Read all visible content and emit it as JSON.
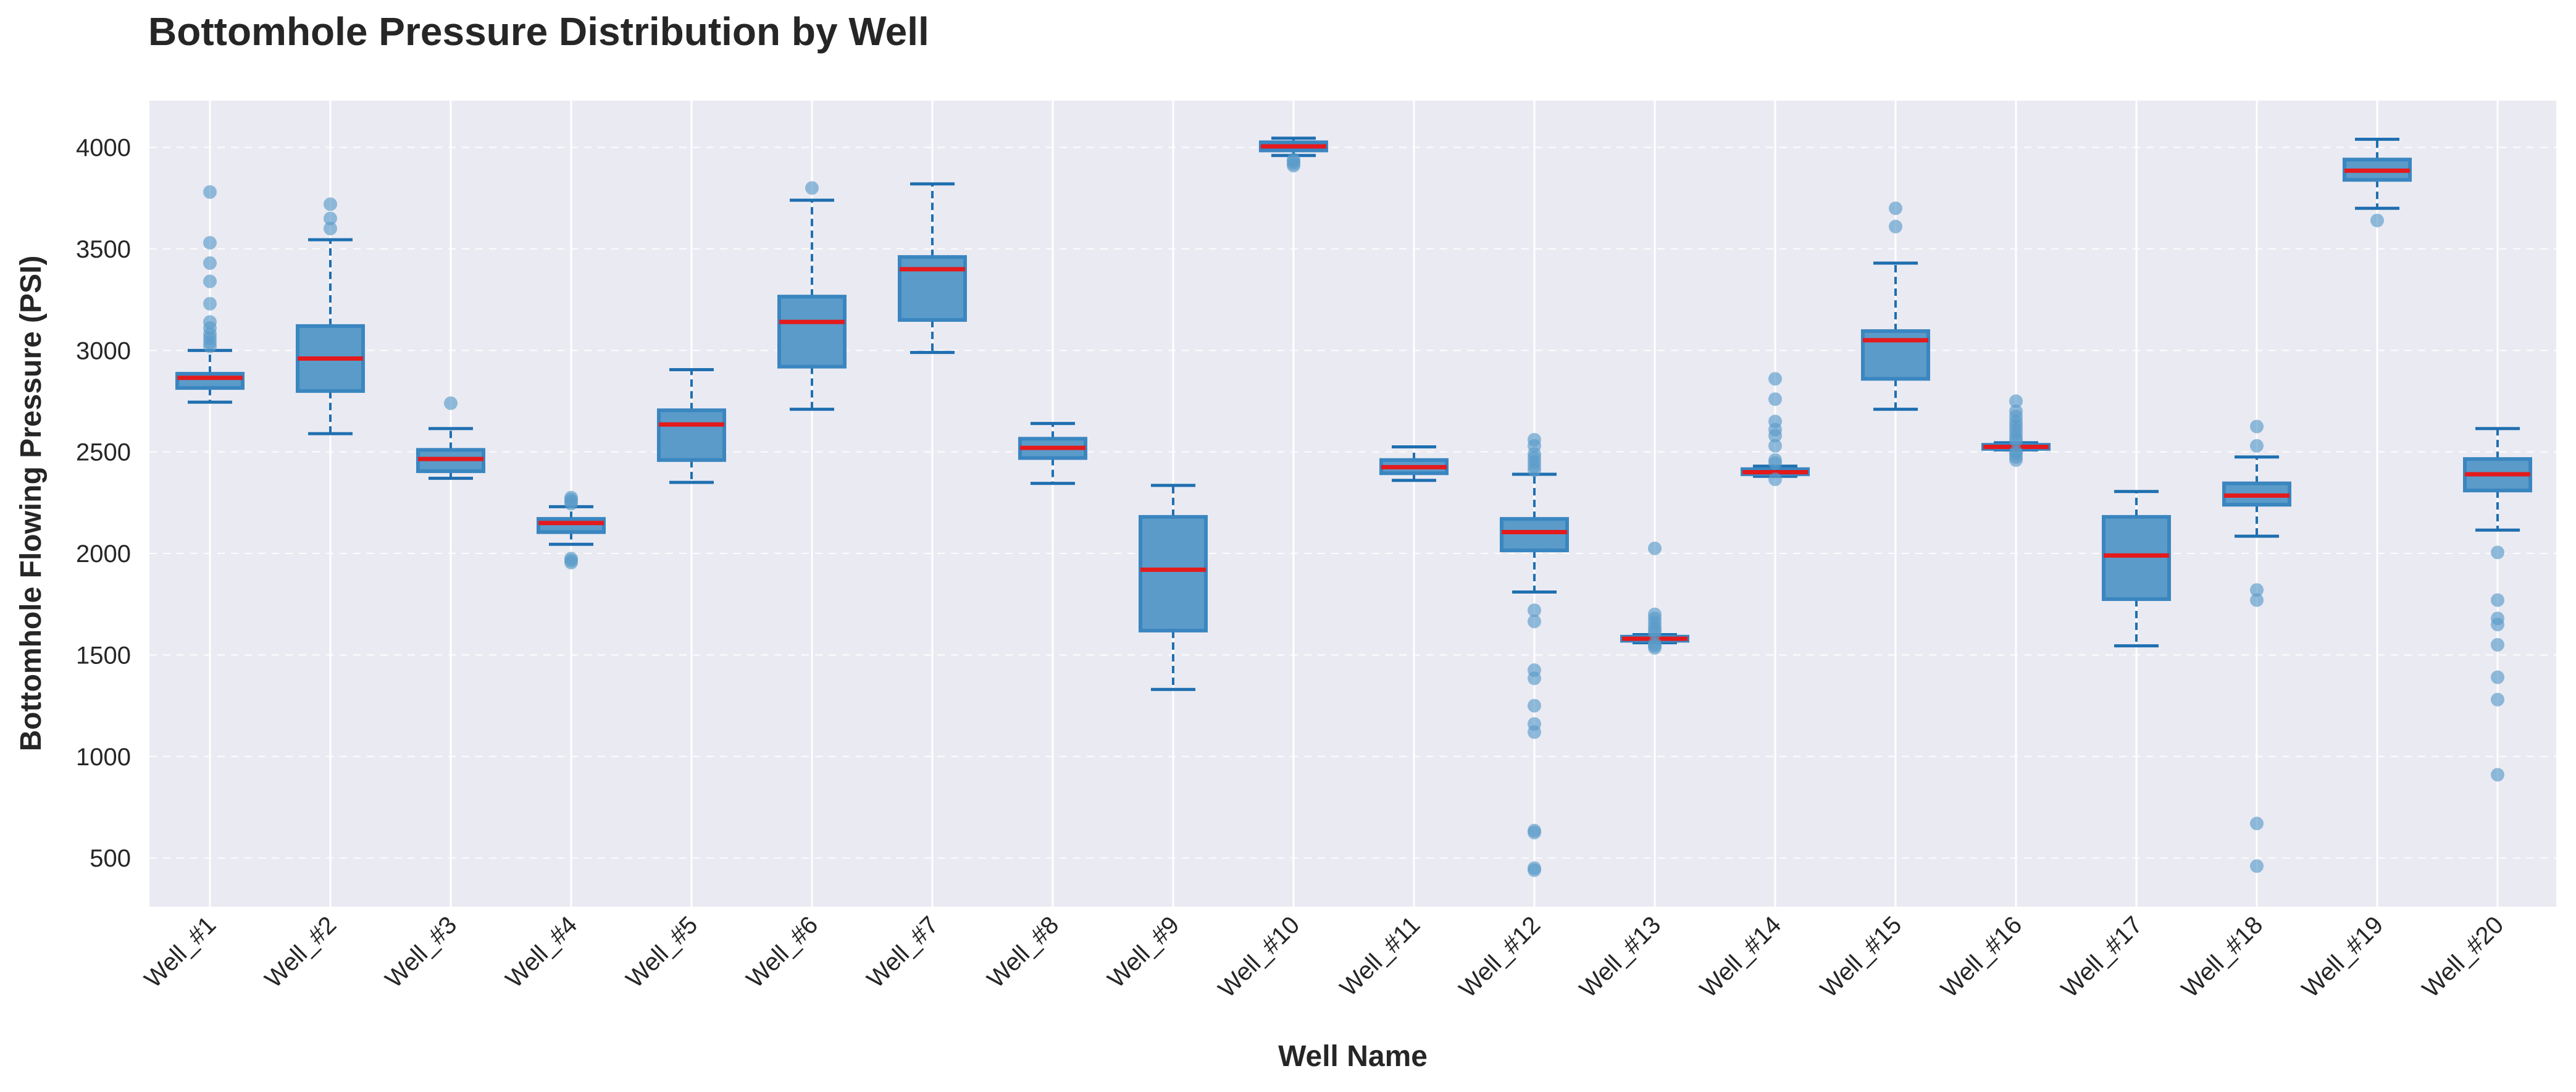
{
  "chart_data": {
    "type": "box",
    "title": "Bottomhole Pressure Distribution by Well",
    "xlabel": "Well Name",
    "ylabel": "Bottomhole Flowing Pressure (PSI)",
    "ylim": [
      260,
      4230
    ],
    "yticks": [
      500,
      1000,
      1500,
      2000,
      2500,
      3000,
      3500,
      4000
    ],
    "grid": true,
    "colors": {
      "plot_background": "#eaeaf2",
      "box_fill": "#5b9bc9",
      "box_edge": "#3a86c0",
      "whisker": "#1f6fb0",
      "median": "#e41a1c",
      "outlier": "#5b9bc9",
      "grid": "#ffffff"
    },
    "categories": [
      "Well_#1",
      "Well_#2",
      "Well_#3",
      "Well_#4",
      "Well_#5",
      "Well_#6",
      "Well_#7",
      "Well_#8",
      "Well_#9",
      "Well_#10",
      "Well_#11",
      "Well_#12",
      "Well_#13",
      "Well_#14",
      "Well_#15",
      "Well_#16",
      "Well_#17",
      "Well_#18",
      "Well_#19",
      "Well_#20"
    ],
    "boxes": [
      {
        "whislo": 2745,
        "q1": 2815,
        "med": 2865,
        "q3": 2885,
        "whishi": 3000,
        "fliers": [
          3020,
          3040,
          3060,
          3080,
          3110,
          3140,
          3230,
          3340,
          3430,
          3530,
          3780
        ]
      },
      {
        "whislo": 2590,
        "q1": 2800,
        "med": 2960,
        "q3": 3120,
        "whishi": 3545,
        "fliers": [
          3600,
          3650,
          3720
        ]
      },
      {
        "whislo": 2370,
        "q1": 2405,
        "med": 2465,
        "q3": 2510,
        "whishi": 2615,
        "fliers": [
          2740
        ]
      },
      {
        "whislo": 2045,
        "q1": 2105,
        "med": 2150,
        "q3": 2170,
        "whishi": 2230,
        "fliers": [
          1955,
          1965,
          1975,
          2245,
          2255,
          2265,
          2275
        ]
      },
      {
        "whislo": 2350,
        "q1": 2460,
        "med": 2635,
        "q3": 2705,
        "whishi": 2905,
        "fliers": []
      },
      {
        "whislo": 2710,
        "q1": 2920,
        "med": 3140,
        "q3": 3265,
        "whishi": 3740,
        "fliers": [
          3800
        ]
      },
      {
        "whislo": 2990,
        "q1": 3150,
        "med": 3400,
        "q3": 3460,
        "whishi": 3820,
        "fliers": []
      },
      {
        "whislo": 2345,
        "q1": 2470,
        "med": 2520,
        "q3": 2565,
        "whishi": 2640,
        "fliers": []
      },
      {
        "whislo": 1330,
        "q1": 1620,
        "med": 1920,
        "q3": 2180,
        "whishi": 2335,
        "fliers": []
      },
      {
        "whislo": 3960,
        "q1": 3985,
        "med": 4005,
        "q3": 4025,
        "whishi": 4045,
        "fliers": [
          3910,
          3920,
          3930,
          3940
        ]
      },
      {
        "whislo": 2360,
        "q1": 2395,
        "med": 2425,
        "q3": 2460,
        "whishi": 2525,
        "fliers": []
      },
      {
        "whislo": 1810,
        "q1": 2015,
        "med": 2105,
        "q3": 2170,
        "whishi": 2390,
        "fliers": [
          440,
          450,
          625,
          635,
          1120,
          1160,
          1250,
          1385,
          1425,
          1665,
          1720,
          2410,
          2430,
          2450,
          2470,
          2490,
          2530,
          2560
        ]
      },
      {
        "whislo": 1560,
        "q1": 1570,
        "med": 1580,
        "q3": 1590,
        "whishi": 1600,
        "fliers": [
          1535,
          1545,
          1555,
          1610,
          1625,
          1640,
          1660,
          1680,
          1700,
          2025
        ]
      },
      {
        "whislo": 2380,
        "q1": 2390,
        "med": 2400,
        "q3": 2415,
        "whishi": 2430,
        "fliers": [
          2365,
          2445,
          2460,
          2530,
          2580,
          2610,
          2650,
          2760,
          2860
        ]
      },
      {
        "whislo": 2710,
        "q1": 2860,
        "med": 3050,
        "q3": 3095,
        "whishi": 3430,
        "fliers": [
          3610,
          3700
        ]
      },
      {
        "whislo": 2510,
        "q1": 2515,
        "med": 2525,
        "q3": 2535,
        "whishi": 2545,
        "fliers": [
          2460,
          2475,
          2490,
          2500,
          2555,
          2570,
          2590,
          2610,
          2630,
          2650,
          2675,
          2700,
          2750
        ]
      },
      {
        "whislo": 1545,
        "q1": 1775,
        "med": 1990,
        "q3": 2180,
        "whishi": 2305,
        "fliers": []
      },
      {
        "whislo": 2085,
        "q1": 2240,
        "med": 2285,
        "q3": 2345,
        "whishi": 2475,
        "fliers": [
          460,
          670,
          1770,
          1820,
          2530,
          2625
        ]
      },
      {
        "whislo": 3700,
        "q1": 3840,
        "med": 3885,
        "q3": 3940,
        "whishi": 4040,
        "fliers": [
          3640
        ]
      },
      {
        "whislo": 2115,
        "q1": 2310,
        "med": 2390,
        "q3": 2465,
        "whishi": 2615,
        "fliers": [
          910,
          1280,
          1390,
          1550,
          1650,
          1680,
          1770,
          2005
        ]
      }
    ]
  }
}
